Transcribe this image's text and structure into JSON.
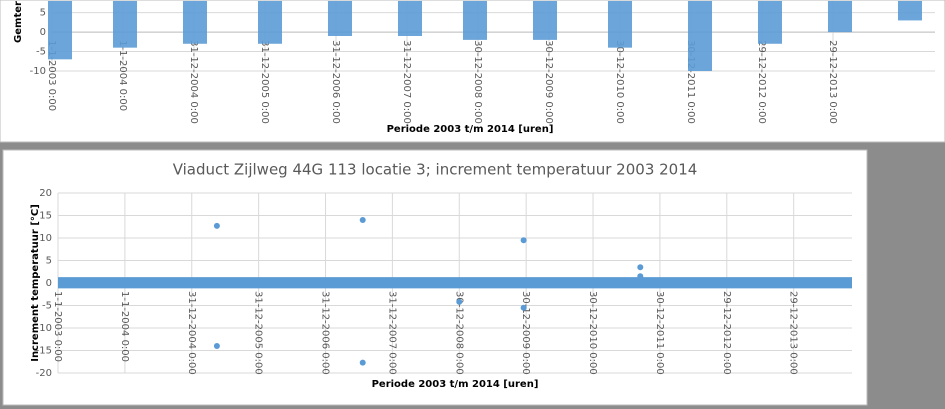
{
  "chart_data": [
    {
      "type": "range",
      "y_label": "Gemter",
      "x_label": "Periode 2003 t/m 2014 [uren]",
      "x": [
        987,
        9007,
        17643,
        26897,
        35533,
        44170,
        52190,
        60826,
        70080,
        79950,
        88586,
        97223,
        105859
      ],
      "low": [
        -7,
        -4,
        -3,
        -3,
        -1,
        -1,
        -2,
        -2,
        -4,
        -10,
        -3,
        0,
        3
      ],
      "high": [
        8,
        8,
        8,
        8,
        8,
        8,
        8,
        8,
        8,
        8,
        8,
        8,
        8
      ],
      "color": "#5b9bd5",
      "xlim": [
        0,
        108945
      ],
      "ylim": [
        -10,
        8.25
      ],
      "yticks": [
        5,
        0,
        -5,
        -10
      ],
      "xticks": [
        {
          "value": 0,
          "label": "1-1-2003 0:00"
        },
        {
          "value": 8760,
          "label": "1-1-2004 0:00"
        },
        {
          "value": 17520,
          "label": "31-12-2004 0:00"
        },
        {
          "value": 26280,
          "label": "31-12-2005 0:00"
        },
        {
          "value": 35040,
          "label": "31-12-2006 0:00"
        },
        {
          "value": 43800,
          "label": "31-12-2007 0:00"
        },
        {
          "value": 52560,
          "label": "30-12-2008 0:00"
        },
        {
          "value": 61320,
          "label": "30-12-2009 0:00"
        },
        {
          "value": 70080,
          "label": "30-12-2010 0:00"
        },
        {
          "value": 78840,
          "label": "30-12-2011 0:00"
        },
        {
          "value": 87600,
          "label": "29-12-2012 0:00"
        },
        {
          "value": 96360,
          "label": "29-12-2013 0:00"
        }
      ],
      "grid": true
    },
    {
      "type": "scatter",
      "title": "Viaduct Zijlweg 44G 113 locatie 3; increment temperatuur 2003 2014",
      "y_label": "Increment temperatuur [°C]",
      "x_label": "Periode 2003 t/m 2014 [uren]",
      "band": {
        "x": [
          0,
          104000
        ],
        "low": [
          -1.2,
          -1.2
        ],
        "high": [
          1.3,
          1.3
        ]
      },
      "x": [
        20813,
        20813,
        39914,
        39914,
        52560,
        60990,
        60990,
        76270,
        76270
      ],
      "values": [
        12.7,
        -14,
        14,
        -17.7,
        -4.2,
        9.5,
        -5.5,
        3.5,
        1.5
      ],
      "color": "#5b9bd5",
      "xlim": [
        0,
        104000
      ],
      "ylim": [
        -20,
        20
      ],
      "yticks": [
        20,
        15,
        10,
        5,
        0,
        -5,
        -10,
        -15,
        -20
      ],
      "xticks": [
        {
          "value": 0,
          "label": "1-1-2003 0:00"
        },
        {
          "value": 8760,
          "label": "1-1-2004 0:00"
        },
        {
          "value": 17520,
          "label": "31-12-2004 0:00"
        },
        {
          "value": 26280,
          "label": "31-12-2005 0:00"
        },
        {
          "value": 35040,
          "label": "31-12-2006 0:00"
        },
        {
          "value": 43800,
          "label": "31-12-2007 0:00"
        },
        {
          "value": 52560,
          "label": "30-12-2008 0:00"
        },
        {
          "value": 61320,
          "label": "30-12-2009 0:00"
        },
        {
          "value": 70080,
          "label": "30-12-2010 0:00"
        },
        {
          "value": 78840,
          "label": "30-12-2011 0:00"
        },
        {
          "value": 87600,
          "label": "29-12-2012 0:00"
        },
        {
          "value": 96360,
          "label": "29-12-2013 0:00"
        }
      ],
      "grid": true
    }
  ]
}
